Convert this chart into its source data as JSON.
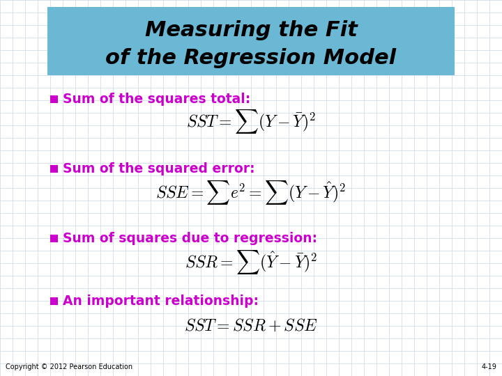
{
  "title_line1": "Measuring the Fit",
  "title_line2": "of the Regression Model",
  "title_bg_color": "#6BB8D4",
  "title_text_color": "#000000",
  "slide_bg_color": "#FFFFFF",
  "grid_color": "#C8D8E8",
  "bullet_color": "#CC00CC",
  "bullet_text_color": "#CC00CC",
  "formula_color": "#000000",
  "bullet1_text": "Sum of the squares total:",
  "bullet1_formula": "$SST = \\sum(Y - \\bar{Y})^2$",
  "bullet2_text": "Sum of the squared error:",
  "bullet2_formula": "$SSE = \\sum e^2 = \\sum(Y - \\hat{Y})^2$",
  "bullet3_text": "Sum of squares due to regression:",
  "bullet3_formula": "$SSR = \\sum(\\hat{Y} - \\bar{Y})^2$",
  "bullet4_text": "An important relationship:",
  "bullet4_formula": "$SST = SSR + SSE$",
  "footer_left": "Copyright © 2012 Pearson Education",
  "footer_right": "4-19",
  "footer_color": "#000000"
}
